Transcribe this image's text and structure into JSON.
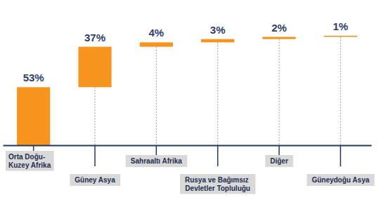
{
  "chart_data": {
    "type": "waterfall",
    "categories": [
      "Orta Doğu-Kuzey Afrika",
      "Güney Asya",
      "Sahraaltı Afrika",
      "Rusya ve Bağımsız Devletler Topluluğu",
      "Diğer",
      "Güneydoğu Asya"
    ],
    "values": [
      53,
      37,
      4,
      3,
      2,
      1
    ],
    "value_labels": [
      "53%",
      "37%",
      "4%",
      "3%",
      "2%",
      "1%"
    ],
    "data_labels": true,
    "color": "#f7941d",
    "ylim": [
      0,
      100
    ],
    "tick_labels": "x"
  }
}
